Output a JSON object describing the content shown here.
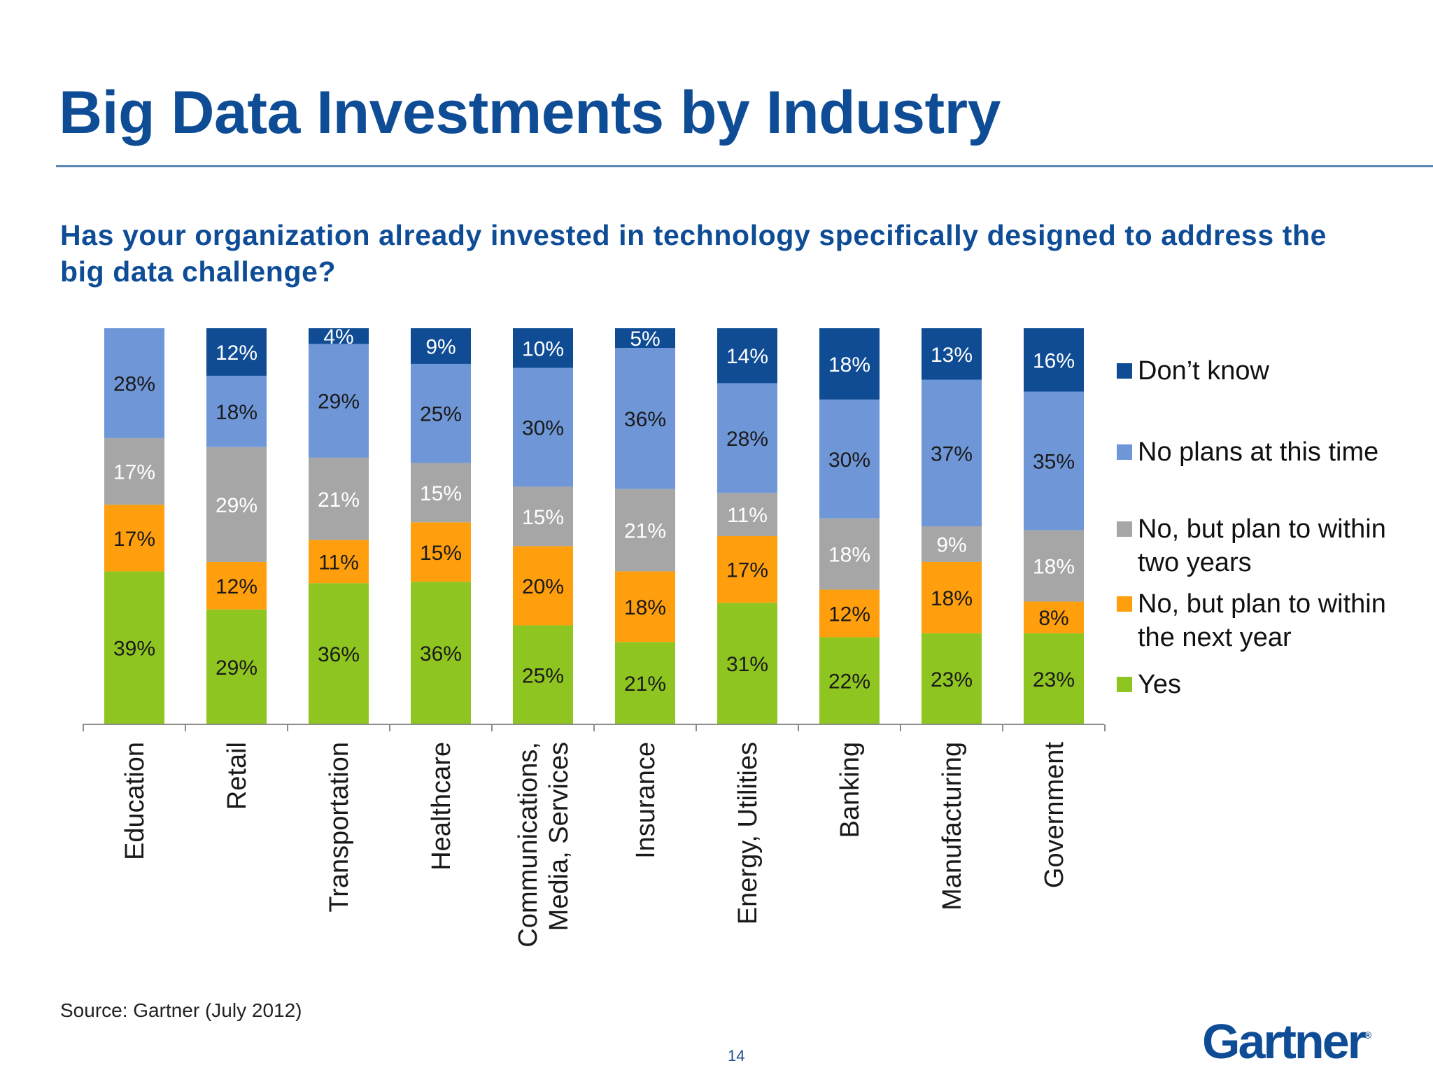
{
  "title": "Big Data Investments by Industry",
  "subtitle": "Has your organization already invested in technology specifically designed to address the big data challenge?",
  "source": "Source: Gartner (July 2012)",
  "page_number": "14",
  "logo_text": "Gartner",
  "colors": {
    "title": "#0E4C96",
    "dont_know": "#0F4C94",
    "no_plans": "#6F97D8",
    "two_years": "#A6A6A6",
    "next_year": "#FF9F0E",
    "yes": "#8FC521"
  },
  "legend": [
    {
      "label": "Don’t know",
      "color": "#0F4C94"
    },
    {
      "label": "No plans at this time",
      "color": "#6F97D8"
    },
    {
      "label": "No, but plan to within two years",
      "color": "#A6A6A6"
    },
    {
      "label": "No, but plan to within the next year",
      "color": "#FF9F0E"
    },
    {
      "label": "Yes",
      "color": "#8FC521"
    }
  ],
  "chart_data": {
    "type": "bar",
    "stacked": true,
    "normalized": "100%",
    "categories": [
      "Education",
      "Retail",
      "Transportation",
      "Healthcare",
      "Communications, Media, Services",
      "Insurance",
      "Energy, Utilities",
      "Banking",
      "Manufacturing",
      "Government"
    ],
    "category_lines": [
      [
        "Education"
      ],
      [
        "Retail"
      ],
      [
        "Transportation"
      ],
      [
        "Healthcare"
      ],
      [
        "Communications,",
        "Media, Services"
      ],
      [
        "Insurance"
      ],
      [
        "Energy, Utilities"
      ],
      [
        "Banking"
      ],
      [
        "Manufacturing"
      ],
      [
        "Government"
      ]
    ],
    "series": [
      {
        "name": "Yes",
        "color": "#8FC521",
        "values": [
          39,
          29,
          36,
          36,
          25,
          21,
          31,
          22,
          23,
          23
        ]
      },
      {
        "name": "No, but plan to within the next year",
        "color": "#FF9F0E",
        "values": [
          17,
          12,
          11,
          15,
          20,
          18,
          17,
          12,
          18,
          8
        ]
      },
      {
        "name": "No, but plan to within two years",
        "color": "#A6A6A6",
        "values": [
          17,
          29,
          21,
          15,
          15,
          21,
          11,
          18,
          9,
          18
        ]
      },
      {
        "name": "No plans at this time",
        "color": "#6F97D8",
        "values": [
          28,
          18,
          29,
          25,
          30,
          36,
          28,
          30,
          37,
          35
        ]
      },
      {
        "name": "Don’t know",
        "color": "#0F4C94",
        "values": [
          null,
          12,
          4,
          9,
          10,
          5,
          14,
          18,
          13,
          16
        ]
      }
    ],
    "label_colors": {
      "Yes": "#1a1a1a",
      "No, but plan to within the next year": "#1a1a1a",
      "No, but plan to within two years": "#ffffff",
      "No plans at this time": "#1a1a1a",
      "Don’t know": "#ffffff"
    },
    "value_suffix": "%",
    "legend_position": "right",
    "grid": false
  }
}
